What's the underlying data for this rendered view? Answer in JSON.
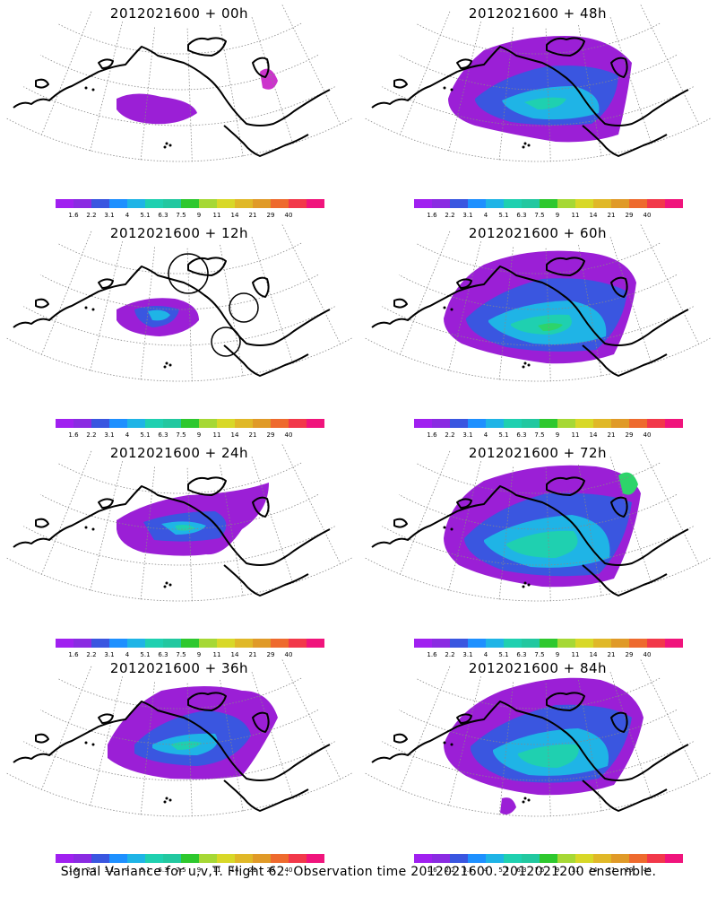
{
  "panels": [
    {
      "title": "2012021600 + 00h",
      "col": 0,
      "row": 0,
      "blobs": [
        [
          "#9b1fd6",
          "M130 110 Q150 100 180 108 Q215 112 220 126 Q200 140 170 138 Q140 136 130 122 Z"
        ],
        [
          "#cc33cc",
          "M290 80 Q302 70 310 90 Q305 104 293 98 Z"
        ]
      ]
    },
    {
      "title": "2012021600 + 12h",
      "col": 0,
      "row": 1,
      "circles": true,
      "blobs": [
        [
          "#9b1fd6",
          "M130 100 Q160 84 195 88 Q222 94 222 112 Q208 128 178 130 Q140 128 130 112 Z"
        ],
        [
          "#3a56e0",
          "M150 100 Q175 92 200 100 Q196 118 170 120 Q152 114 150 100 Z"
        ],
        [
          "#1fb4e6",
          "M165 102 Q182 98 190 106 Q184 114 170 112 Z"
        ]
      ]
    },
    {
      "title": "2012021600 + 24h",
      "col": 0,
      "row": 2,
      "blobs": [
        [
          "#9b1fd6",
          "M130 90 Q160 70 210 62 Q265 60 300 48 Q300 80 270 100 Q250 130 230 128 Q200 132 160 126 Q132 118 130 100 Z"
        ],
        [
          "#3a56e0",
          "M160 92 Q195 80 240 80 Q262 92 245 110 Q210 116 172 112 Z"
        ],
        [
          "#1fb4e6",
          "M180 94 Q210 88 230 96 Q222 106 196 106 Z"
        ],
        [
          "#1fd0b0",
          "M195 96 Q210 93 218 99 Q208 103 198 101 Z"
        ]
      ]
    },
    {
      "title": "2012021600 + 36h",
      "col": 0,
      "row": 3,
      "blobs": [
        [
          "#9b1fd6",
          "M120 100 Q140 60 180 40 Q230 30 270 40 Q300 40 310 70 Q290 110 270 135 Q240 140 190 138 Q140 132 120 115 Z"
        ],
        [
          "#3a56e0",
          "M150 100 Q180 70 230 62 Q275 66 280 90 Q262 120 220 124 Q170 122 150 110 Z"
        ],
        [
          "#1fb4e6",
          "M170 100 Q200 86 240 88 Q250 104 220 112 Q185 112 170 104 Z"
        ],
        [
          "#1fd0b0",
          "M190 100 Q208 94 225 98 Q218 106 198 106 Z"
        ]
      ]
    },
    {
      "title": "2012021600 + 48h",
      "col": 1,
      "row": 0,
      "blobs": [
        [
          "#9b1fd6",
          "M100 110 Q110 80 140 56 Q180 40 230 40 Q280 40 305 70 Q300 110 290 150 Q260 160 220 158 Q170 150 130 140 Q100 130 100 110 Z"
        ],
        [
          "#3a56e0",
          "M130 110 Q160 84 210 74 Q260 70 290 84 Q288 118 260 138 Q210 142 170 136 Q135 126 130 112 Z"
        ],
        [
          "#1fb4e6",
          "M160 112 Q195 96 240 96 Q272 104 268 126 Q235 136 195 132 Q165 124 160 112 Z"
        ],
        [
          "#1fd0b0",
          "M185 114 Q210 106 232 110 Q226 122 200 122 Z"
        ]
      ]
    },
    {
      "title": "2012021600 + 60h",
      "col": 1,
      "row": 1,
      "blobs": [
        [
          "#9b1fd6",
          "M95 110 Q105 70 140 50 Q190 30 250 36 Q300 40 310 70 Q305 110 285 150 Q250 162 210 160 Q150 152 115 138 Q95 126 95 110 Z"
        ],
        [
          "#3a56e0",
          "M120 110 Q150 80 205 66 Q265 62 300 80 Q295 120 265 145 Q215 150 165 142 Q125 130 120 112 Z"
        ],
        [
          "#1fb4e6",
          "M145 112 Q180 92 235 90 Q280 98 276 130 Q240 142 195 138 Q155 128 145 114 Z"
        ],
        [
          "#1fd0b0",
          "M170 116 Q200 104 235 106 Q246 122 215 128 Q182 128 170 118 Z"
        ],
        [
          "#2dd46a",
          "M200 118 Q215 113 228 117 Q222 124 206 124 Z"
        ]
      ]
    },
    {
      "title": "2012021600 + 72h",
      "col": 1,
      "row": 2,
      "blobs": [
        [
          "#9b1fd6",
          "M95 110 Q100 70 140 46 Q200 24 265 30 Q305 36 315 60 Q308 110 285 155 Q250 166 205 164 Q145 156 112 140 Q95 126 95 110 Z"
        ],
        [
          "#3a56e0",
          "M118 110 Q150 76 210 60 Q275 58 305 70 Q298 120 268 150 Q215 156 162 146 Q122 132 118 112 Z"
        ],
        [
          "#1fb4e6",
          "M140 112 Q178 88 238 84 Q285 92 280 132 Q240 146 192 142 Q150 130 140 114 Z"
        ],
        [
          "#1fd0b0",
          "M165 116 Q200 100 240 102 Q255 122 220 132 Q178 132 165 118 Z"
        ],
        [
          "#2dd46a",
          "M290 40 Q305 30 312 50 Q306 66 295 60 Z"
        ]
      ]
    },
    {
      "title": "2012021600 + 84h",
      "col": 1,
      "row": 3,
      "blobs": [
        [
          "#9b1fd6",
          "M95 100 Q110 60 160 40 Q220 20 270 28 Q310 40 318 70 Q310 110 285 145 Q245 158 200 156 Q150 150 120 135 Q95 120 95 100 Z"
        ],
        [
          "#3a56e0",
          "M125 102 Q160 70 220 56 Q280 54 305 70 Q298 112 268 138 Q220 146 172 140 Q132 128 125 106 Z"
        ],
        [
          "#1fb4e6",
          "M150 106 Q190 84 245 82 Q285 92 278 124 Q238 138 190 134 Q155 124 150 108 Z"
        ],
        [
          "#1fd0b0",
          "M178 110 Q210 98 245 100 Q250 118 222 126 Q188 126 178 112 Z"
        ],
        [
          "#9b1fd6",
          "M160 160 Q172 156 176 170 Q168 182 158 176 Z"
        ]
      ]
    }
  ],
  "colorbar": {
    "colors": [
      "#a020f0",
      "#8a2be2",
      "#3a56e0",
      "#1e90ff",
      "#1fb4e6",
      "#1fd0b0",
      "#22c8a0",
      "#2ec82e",
      "#a6d835",
      "#d8d828",
      "#e0b828",
      "#e09a28",
      "#ee6a2e",
      "#f2384a",
      "#f0147c"
    ],
    "labels": [
      "1.6",
      "2.2",
      "3.1",
      "4",
      "5.1",
      "6.3",
      "7.5",
      "9",
      "11",
      "14",
      "21",
      "29",
      "40"
    ]
  },
  "footer": "Signal Variance for u,v,T. Flight 62. Observation time 2012021600. 2012021200 ensemble."
}
